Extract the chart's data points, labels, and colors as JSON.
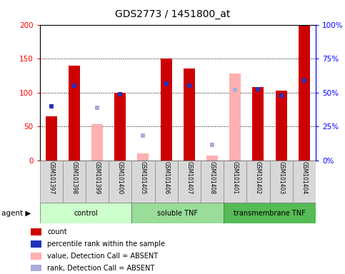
{
  "title": "GDS2773 / 1451800_at",
  "samples": [
    "GSM101397",
    "GSM101398",
    "GSM101399",
    "GSM101400",
    "GSM101405",
    "GSM101406",
    "GSM101407",
    "GSM101408",
    "GSM101401",
    "GSM101402",
    "GSM101403",
    "GSM101404"
  ],
  "groups": [
    {
      "name": "control",
      "indices": [
        0,
        1,
        2,
        3
      ]
    },
    {
      "name": "soluble TNF",
      "indices": [
        4,
        5,
        6,
        7
      ]
    },
    {
      "name": "transmembrane TNF",
      "indices": [
        8,
        9,
        10,
        11
      ]
    }
  ],
  "red_bars": [
    65,
    140,
    0,
    100,
    0,
    150,
    135,
    0,
    0,
    108,
    103,
    198
  ],
  "pink_bars": [
    0,
    0,
    53,
    0,
    10,
    0,
    0,
    7,
    128,
    0,
    0,
    0
  ],
  "blue_squares": [
    80,
    110,
    0,
    98,
    0,
    113,
    110,
    0,
    0,
    105,
    95,
    117
  ],
  "purple_squares": [
    0,
    0,
    77,
    0,
    36,
    0,
    0,
    23,
    104,
    0,
    0,
    0
  ],
  "ylim_left": [
    0,
    200
  ],
  "ylim_right": [
    0,
    100
  ],
  "yticks_left": [
    0,
    50,
    100,
    150,
    200
  ],
  "yticks_right": [
    0,
    25,
    50,
    75,
    100
  ],
  "yticklabels_right": [
    "0%",
    "25%",
    "50%",
    "75%",
    "100%"
  ],
  "bar_width": 0.5,
  "red_color": "#cc0000",
  "pink_color": "#ffb0b0",
  "blue_color": "#2233bb",
  "purple_color": "#aaaadd",
  "bg_color": "#ffffff",
  "group_colors": [
    "#ccffcc",
    "#99dd99",
    "#55bb55"
  ],
  "xlabel_bg": "#cccccc"
}
